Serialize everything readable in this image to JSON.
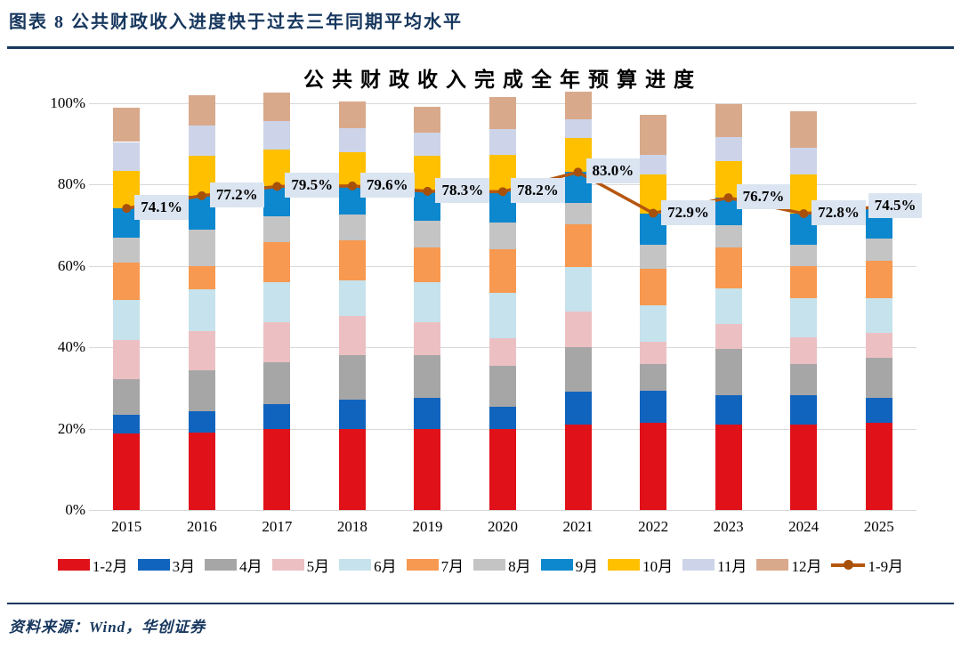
{
  "header": {
    "title": "图表 8  公共财政收入进度快于过去三年同期平均水平"
  },
  "footer": {
    "source": "资料来源：Wind，华创证券"
  },
  "colors": {
    "accent_navy": "#17375E",
    "grid": "#D9D9D9",
    "label_box_bg": "#DBE5F1",
    "line": "#B5560E",
    "line_dot": "#A6500A"
  },
  "chart_data": {
    "type": "bar",
    "stacked": true,
    "title": "公共财政收入完成全年预算进度",
    "xlabel": "",
    "ylabel": "",
    "ylim": [
      0,
      103
    ],
    "grid": true,
    "legend_position": "bottom",
    "categories": [
      "2015",
      "2016",
      "2017",
      "2018",
      "2019",
      "2020",
      "2021",
      "2022",
      "2023",
      "2024",
      "2025"
    ],
    "y_axis": {
      "ticks": [
        {
          "label": "0%",
          "value": 0
        },
        {
          "label": "20%",
          "value": 20
        },
        {
          "label": "40%",
          "value": 40
        },
        {
          "label": "60%",
          "value": 60
        },
        {
          "label": "80%",
          "value": 80
        },
        {
          "label": "100%",
          "value": 100
        }
      ]
    },
    "series": [
      {
        "name": "1-2月",
        "color": "#E01119",
        "values": [
          18.8,
          19.0,
          19.8,
          19.8,
          20.0,
          19.8,
          20.9,
          21.4,
          20.9,
          20.9,
          21.4
        ]
      },
      {
        "name": "3月",
        "color": "#1164BE",
        "values": [
          4.6,
          5.2,
          6.2,
          7.3,
          7.5,
          5.5,
          8.2,
          7.9,
          7.3,
          7.3,
          6.1
        ]
      },
      {
        "name": "4月",
        "color": "#A6A6A6",
        "values": [
          8.8,
          10.2,
          10.2,
          11.0,
          10.6,
          10.2,
          10.9,
          6.6,
          11.3,
          7.7,
          9.8
        ]
      },
      {
        "name": "5月",
        "color": "#ECC0C3",
        "values": [
          9.5,
          9.5,
          9.9,
          9.5,
          8.0,
          6.6,
          8.7,
          5.5,
          6.2,
          6.6,
          6.3
        ]
      },
      {
        "name": "6月",
        "color": "#C6E2EC",
        "values": [
          9.9,
          10.3,
          9.9,
          8.8,
          9.9,
          11.3,
          11.0,
          8.8,
          8.8,
          9.5,
          8.4
        ]
      },
      {
        "name": "7月",
        "color": "#F79950",
        "values": [
          9.2,
          5.8,
          9.9,
          9.9,
          8.6,
          10.7,
          10.4,
          9.1,
          9.9,
          8.0,
          9.2
        ]
      },
      {
        "name": "8月",
        "color": "#C4C4C4",
        "values": [
          6.2,
          8.8,
          6.2,
          6.2,
          6.4,
          6.6,
          5.3,
          5.9,
          5.5,
          5.2,
          5.4
        ]
      },
      {
        "name": "9月",
        "color": "#0D87CE",
        "values": [
          7.1,
          8.4,
          7.4,
          7.1,
          7.3,
          7.5,
          7.6,
          7.7,
          6.8,
          7.6,
          7.9
        ]
      },
      {
        "name": "10月",
        "color": "#FFC000",
        "values": [
          9.1,
          9.8,
          9.1,
          8.3,
          8.7,
          9.1,
          8.4,
          9.5,
          9.0,
          9.6,
          null
        ]
      },
      {
        "name": "11月",
        "color": "#CDD4E9",
        "values": [
          7.2,
          7.4,
          6.9,
          5.8,
          5.6,
          6.3,
          4.5,
          4.9,
          5.8,
          6.6,
          null
        ]
      },
      {
        "name": "12月",
        "color": "#D9A98B",
        "values": [
          8.4,
          7.4,
          7.0,
          6.6,
          6.4,
          7.8,
          6.8,
          9.7,
          8.1,
          9.0,
          null
        ]
      }
    ],
    "line_series": {
      "name": "1-9月",
      "color": "#B5560E",
      "dot_color": "#A6500A",
      "values": [
        74.1,
        77.2,
        79.5,
        79.6,
        78.3,
        78.2,
        83.0,
        72.9,
        76.7,
        72.8,
        74.5
      ],
      "labels": [
        "74.1%",
        "77.2%",
        "79.5%",
        "79.6%",
        "78.3%",
        "78.2%",
        "83.0%",
        "72.9%",
        "76.7%",
        "72.8%",
        "74.5%"
      ]
    }
  }
}
